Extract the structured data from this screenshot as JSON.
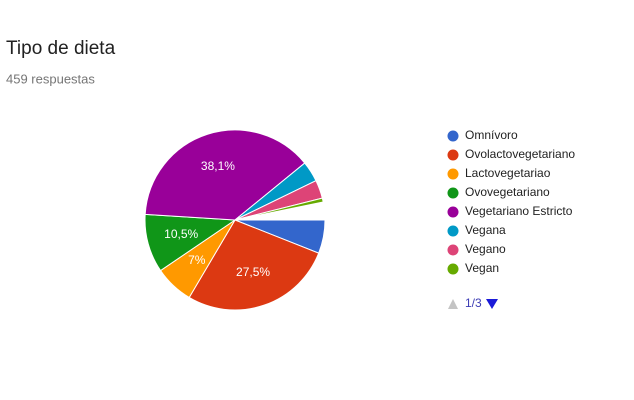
{
  "chart_data": {
    "type": "pie",
    "title": "Tipo de dieta",
    "subtitle": "459 respuestas",
    "categories": [
      "Omnívoro",
      "Ovolactovegetariano",
      "Lactovegetariao",
      "Ovovegetariano",
      "Vegetariano Estricto",
      "Vegana",
      "Vegano",
      "Vegan"
    ],
    "values": [
      6,
      27.5,
      7,
      10.5,
      38.1,
      3.7,
      3.3,
      0.7
    ],
    "value_labels": [
      null,
      "27,5%",
      "7%",
      "10,5%",
      "38,1%",
      null,
      null,
      null
    ],
    "colors": [
      "#3366cc",
      "#dc3912",
      "#ff9900",
      "#109618",
      "#990099",
      "#0099c6",
      "#dd4477",
      "#66aa00"
    ],
    "legend_page": "1/3"
  }
}
